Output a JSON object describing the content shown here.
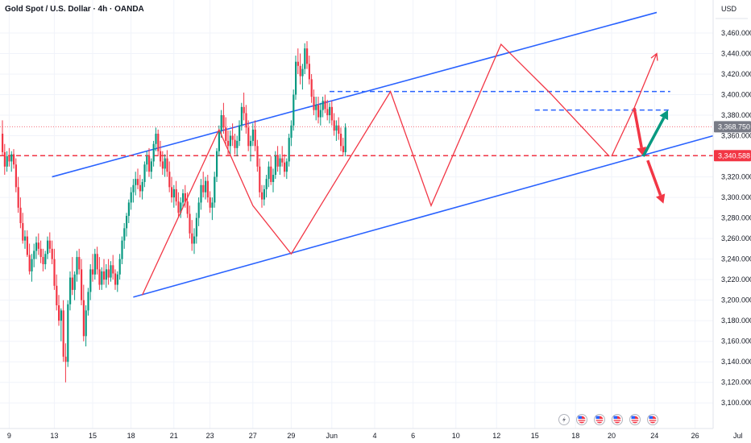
{
  "header": {
    "title": "Gold Spot / U.S. Dollar · 4h · OANDA",
    "currency": "USD"
  },
  "colors": {
    "up": "#089981",
    "down": "#f23645",
    "channel": "#2962ff",
    "zigzag": "#f23645",
    "tag_red": "#f23645",
    "tag_grey": "#787b86"
  },
  "chart_data": {
    "type": "candlestick",
    "symbol": "XAUUSD",
    "timeframe": "4h",
    "ylim": [
      3090,
      3478
    ],
    "y_ticks": [
      "3,100.000",
      "3,120.000",
      "3,140.000",
      "3,160.000",
      "3,180.000",
      "3,200.000",
      "3,220.000",
      "3,240.000",
      "3,260.000",
      "3,280.000",
      "3,300.000",
      "3,320.000",
      "3,340.000",
      "3,360.000",
      "3,380.000",
      "3,400.000",
      "3,420.000",
      "3,440.000",
      "3,460.000"
    ],
    "x_ticks": [
      "9",
      "13",
      "15",
      "18",
      "21",
      "23",
      "27",
      "29",
      "Jun",
      "4",
      "6",
      "10",
      "12",
      "15",
      "18",
      "20",
      "24",
      "26",
      "Jul"
    ],
    "x_tick_index": [
      3,
      23,
      40,
      57,
      76,
      92,
      111,
      128,
      146,
      165,
      182,
      201,
      219,
      236,
      254,
      270,
      289,
      307,
      326
    ],
    "price_tags": [
      {
        "label": "3,368.750",
        "value": 3368.75,
        "color": "grey"
      },
      {
        "label": "3,340.588",
        "value": 3340.588,
        "color": "red"
      }
    ],
    "levels": {
      "current_dotted": 3368.75,
      "support_dashed": 3340.588,
      "blue_dashed_upper": 3403,
      "blue_dashed_lower": 3385
    },
    "channel": {
      "upper": [
        [
          22,
          3320
        ],
        [
          290,
          3480
        ]
      ],
      "lower": [
        [
          58,
          3203
        ],
        [
          320,
          3363
        ]
      ]
    },
    "zigzag": [
      [
        62,
        3205
      ],
      [
        96,
        3366
      ],
      [
        111,
        3292
      ],
      [
        128,
        3245
      ],
      [
        141,
        3292
      ],
      [
        172,
        3403
      ],
      [
        190,
        3292
      ],
      [
        221,
        3449
      ],
      [
        243,
        3401
      ],
      [
        269,
        3340
      ]
    ],
    "projection_lines": [
      [
        [
          270,
          3340
        ],
        [
          280,
          3387
        ],
        [
          290,
          3440
        ]
      ]
    ],
    "arrows": [
      {
        "from": [
          280,
          3387
        ],
        "to": [
          284,
          3340
        ],
        "color": "red"
      },
      {
        "from": [
          284,
          3340
        ],
        "to": [
          295,
          3385
        ],
        "color": "green"
      },
      {
        "from": [
          286,
          3336
        ],
        "to": [
          293,
          3294
        ],
        "color": "red"
      }
    ],
    "events_count": 6,
    "candles": [
      [
        3362,
        3375,
        3340,
        3344
      ],
      [
        3344,
        3352,
        3322,
        3330
      ],
      [
        3330,
        3345,
        3325,
        3340
      ],
      [
        3340,
        3348,
        3330,
        3335
      ],
      [
        3335,
        3345,
        3325,
        3342
      ],
      [
        3342,
        3347,
        3328,
        3332
      ],
      [
        3332,
        3338,
        3305,
        3310
      ],
      [
        3310,
        3320,
        3285,
        3290
      ],
      [
        3290,
        3300,
        3270,
        3275
      ],
      [
        3275,
        3285,
        3255,
        3258
      ],
      [
        3258,
        3268,
        3250,
        3262
      ],
      [
        3262,
        3268,
        3242,
        3244
      ],
      [
        3244,
        3255,
        3225,
        3228
      ],
      [
        3228,
        3245,
        3218,
        3240
      ],
      [
        3240,
        3255,
        3232,
        3248
      ],
      [
        3248,
        3262,
        3240,
        3256
      ],
      [
        3256,
        3265,
        3244,
        3250
      ],
      [
        3250,
        3258,
        3236,
        3242
      ],
      [
        3242,
        3250,
        3228,
        3235
      ],
      [
        3235,
        3248,
        3230,
        3245
      ],
      [
        3245,
        3262,
        3240,
        3258
      ],
      [
        3258,
        3266,
        3246,
        3250
      ],
      [
        3250,
        3258,
        3235,
        3240
      ],
      [
        3240,
        3250,
        3210,
        3214
      ],
      [
        3214,
        3225,
        3190,
        3195
      ],
      [
        3195,
        3205,
        3175,
        3180
      ],
      [
        3180,
        3192,
        3160,
        3190
      ],
      [
        3190,
        3200,
        3140,
        3145
      ],
      [
        3145,
        3158,
        3120,
        3140
      ],
      [
        3140,
        3200,
        3135,
        3196
      ],
      [
        3196,
        3228,
        3190,
        3222
      ],
      [
        3222,
        3242,
        3205,
        3210
      ],
      [
        3210,
        3228,
        3200,
        3225
      ],
      [
        3225,
        3248,
        3218,
        3242
      ],
      [
        3242,
        3250,
        3225,
        3230
      ],
      [
        3230,
        3240,
        3195,
        3200
      ],
      [
        3200,
        3215,
        3160,
        3165
      ],
      [
        3165,
        3195,
        3155,
        3190
      ],
      [
        3190,
        3212,
        3185,
        3208
      ],
      [
        3208,
        3235,
        3200,
        3230
      ],
      [
        3230,
        3245,
        3218,
        3225
      ],
      [
        3225,
        3250,
        3220,
        3245
      ],
      [
        3245,
        3252,
        3225,
        3230
      ],
      [
        3230,
        3242,
        3210,
        3215
      ],
      [
        3215,
        3232,
        3210,
        3228
      ],
      [
        3228,
        3240,
        3215,
        3220
      ],
      [
        3220,
        3235,
        3212,
        3230
      ],
      [
        3230,
        3240,
        3215,
        3222
      ],
      [
        3222,
        3238,
        3218,
        3234
      ],
      [
        3234,
        3244,
        3220,
        3226
      ],
      [
        3226,
        3230,
        3210,
        3215
      ],
      [
        3215,
        3228,
        3208,
        3225
      ],
      [
        3225,
        3245,
        3220,
        3240
      ],
      [
        3240,
        3262,
        3235,
        3258
      ],
      [
        3258,
        3275,
        3250,
        3270
      ],
      [
        3270,
        3285,
        3262,
        3282
      ],
      [
        3282,
        3298,
        3275,
        3295
      ],
      [
        3295,
        3310,
        3288,
        3305
      ],
      [
        3305,
        3318,
        3295,
        3312
      ],
      [
        3312,
        3325,
        3302,
        3318
      ],
      [
        3318,
        3328,
        3308,
        3312
      ],
      [
        3312,
        3322,
        3300,
        3306
      ],
      [
        3306,
        3318,
        3298,
        3315
      ],
      [
        3315,
        3335,
        3310,
        3332
      ],
      [
        3332,
        3345,
        3325,
        3340
      ],
      [
        3340,
        3348,
        3320,
        3325
      ],
      [
        3325,
        3338,
        3318,
        3335
      ],
      [
        3335,
        3355,
        3330,
        3352
      ],
      [
        3352,
        3368,
        3345,
        3362
      ],
      [
        3362,
        3366,
        3340,
        3345
      ],
      [
        3345,
        3355,
        3330,
        3335
      ],
      [
        3335,
        3345,
        3322,
        3328
      ],
      [
        3328,
        3342,
        3320,
        3338
      ],
      [
        3338,
        3346,
        3320,
        3325
      ],
      [
        3325,
        3335,
        3305,
        3310
      ],
      [
        3310,
        3320,
        3295,
        3300
      ],
      [
        3300,
        3312,
        3290,
        3308
      ],
      [
        3308,
        3316,
        3292,
        3296
      ],
      [
        3296,
        3305,
        3280,
        3285
      ],
      [
        3285,
        3300,
        3280,
        3295
      ],
      [
        3295,
        3308,
        3290,
        3304
      ],
      [
        3304,
        3312,
        3290,
        3296
      ],
      [
        3296,
        3305,
        3280,
        3284
      ],
      [
        3284,
        3292,
        3260,
        3265
      ],
      [
        3265,
        3278,
        3248,
        3255
      ],
      [
        3255,
        3270,
        3245,
        3262
      ],
      [
        3262,
        3285,
        3255,
        3280
      ],
      [
        3280,
        3300,
        3272,
        3295
      ],
      [
        3295,
        3318,
        3288,
        3312
      ],
      [
        3312,
        3325,
        3300,
        3305
      ],
      [
        3305,
        3320,
        3298,
        3316
      ],
      [
        3316,
        3322,
        3295,
        3300
      ],
      [
        3300,
        3306,
        3285,
        3290
      ],
      [
        3290,
        3300,
        3278,
        3295
      ],
      [
        3295,
        3325,
        3290,
        3320
      ],
      [
        3320,
        3348,
        3315,
        3345
      ],
      [
        3345,
        3370,
        3340,
        3365
      ],
      [
        3365,
        3385,
        3358,
        3380
      ],
      [
        3380,
        3392,
        3362,
        3368
      ],
      [
        3368,
        3378,
        3350,
        3355
      ],
      [
        3355,
        3365,
        3340,
        3350
      ],
      [
        3350,
        3365,
        3342,
        3360
      ],
      [
        3360,
        3372,
        3350,
        3356
      ],
      [
        3356,
        3362,
        3342,
        3348
      ],
      [
        3348,
        3360,
        3340,
        3355
      ],
      [
        3355,
        3375,
        3350,
        3370
      ],
      [
        3370,
        3392,
        3365,
        3388
      ],
      [
        3388,
        3402,
        3375,
        3382
      ],
      [
        3382,
        3390,
        3362,
        3368
      ],
      [
        3368,
        3375,
        3345,
        3350
      ],
      [
        3350,
        3360,
        3335,
        3355
      ],
      [
        3355,
        3372,
        3350,
        3366
      ],
      [
        3366,
        3375,
        3345,
        3350
      ],
      [
        3350,
        3356,
        3325,
        3330
      ],
      [
        3330,
        3338,
        3300,
        3305
      ],
      [
        3305,
        3312,
        3290,
        3298
      ],
      [
        3298,
        3312,
        3292,
        3308
      ],
      [
        3308,
        3322,
        3300,
        3318
      ],
      [
        3318,
        3335,
        3310,
        3330
      ],
      [
        3330,
        3340,
        3312,
        3315
      ],
      [
        3315,
        3328,
        3305,
        3322
      ],
      [
        3322,
        3345,
        3318,
        3340
      ],
      [
        3340,
        3350,
        3325,
        3330
      ],
      [
        3330,
        3342,
        3322,
        3338
      ],
      [
        3338,
        3350,
        3330,
        3334
      ],
      [
        3334,
        3342,
        3320,
        3325
      ],
      [
        3325,
        3338,
        3318,
        3335
      ],
      [
        3335,
        3362,
        3330,
        3358
      ],
      [
        3358,
        3375,
        3350,
        3370
      ],
      [
        3370,
        3405,
        3365,
        3400
      ],
      [
        3400,
        3438,
        3395,
        3432
      ],
      [
        3432,
        3445,
        3420,
        3428
      ],
      [
        3428,
        3440,
        3410,
        3418
      ],
      [
        3418,
        3430,
        3405,
        3425
      ],
      [
        3425,
        3450,
        3420,
        3445
      ],
      [
        3445,
        3452,
        3425,
        3430
      ],
      [
        3430,
        3438,
        3410,
        3415
      ],
      [
        3415,
        3420,
        3392,
        3398
      ],
      [
        3398,
        3405,
        3380,
        3385
      ],
      [
        3385,
        3398,
        3375,
        3390
      ],
      [
        3390,
        3398,
        3372,
        3378
      ],
      [
        3378,
        3392,
        3370,
        3385
      ],
      [
        3385,
        3398,
        3378,
        3394
      ],
      [
        3394,
        3400,
        3382,
        3386
      ],
      [
        3386,
        3395,
        3375,
        3380
      ],
      [
        3380,
        3392,
        3372,
        3388
      ],
      [
        3388,
        3394,
        3370,
        3375
      ],
      [
        3375,
        3382,
        3360,
        3365
      ],
      [
        3365,
        3375,
        3355,
        3370
      ],
      [
        3370,
        3378,
        3356,
        3362
      ],
      [
        3362,
        3368,
        3345,
        3350
      ],
      [
        3350,
        3358,
        3340,
        3344
      ],
      [
        3344,
        3372,
        3340,
        3368
      ]
    ]
  }
}
